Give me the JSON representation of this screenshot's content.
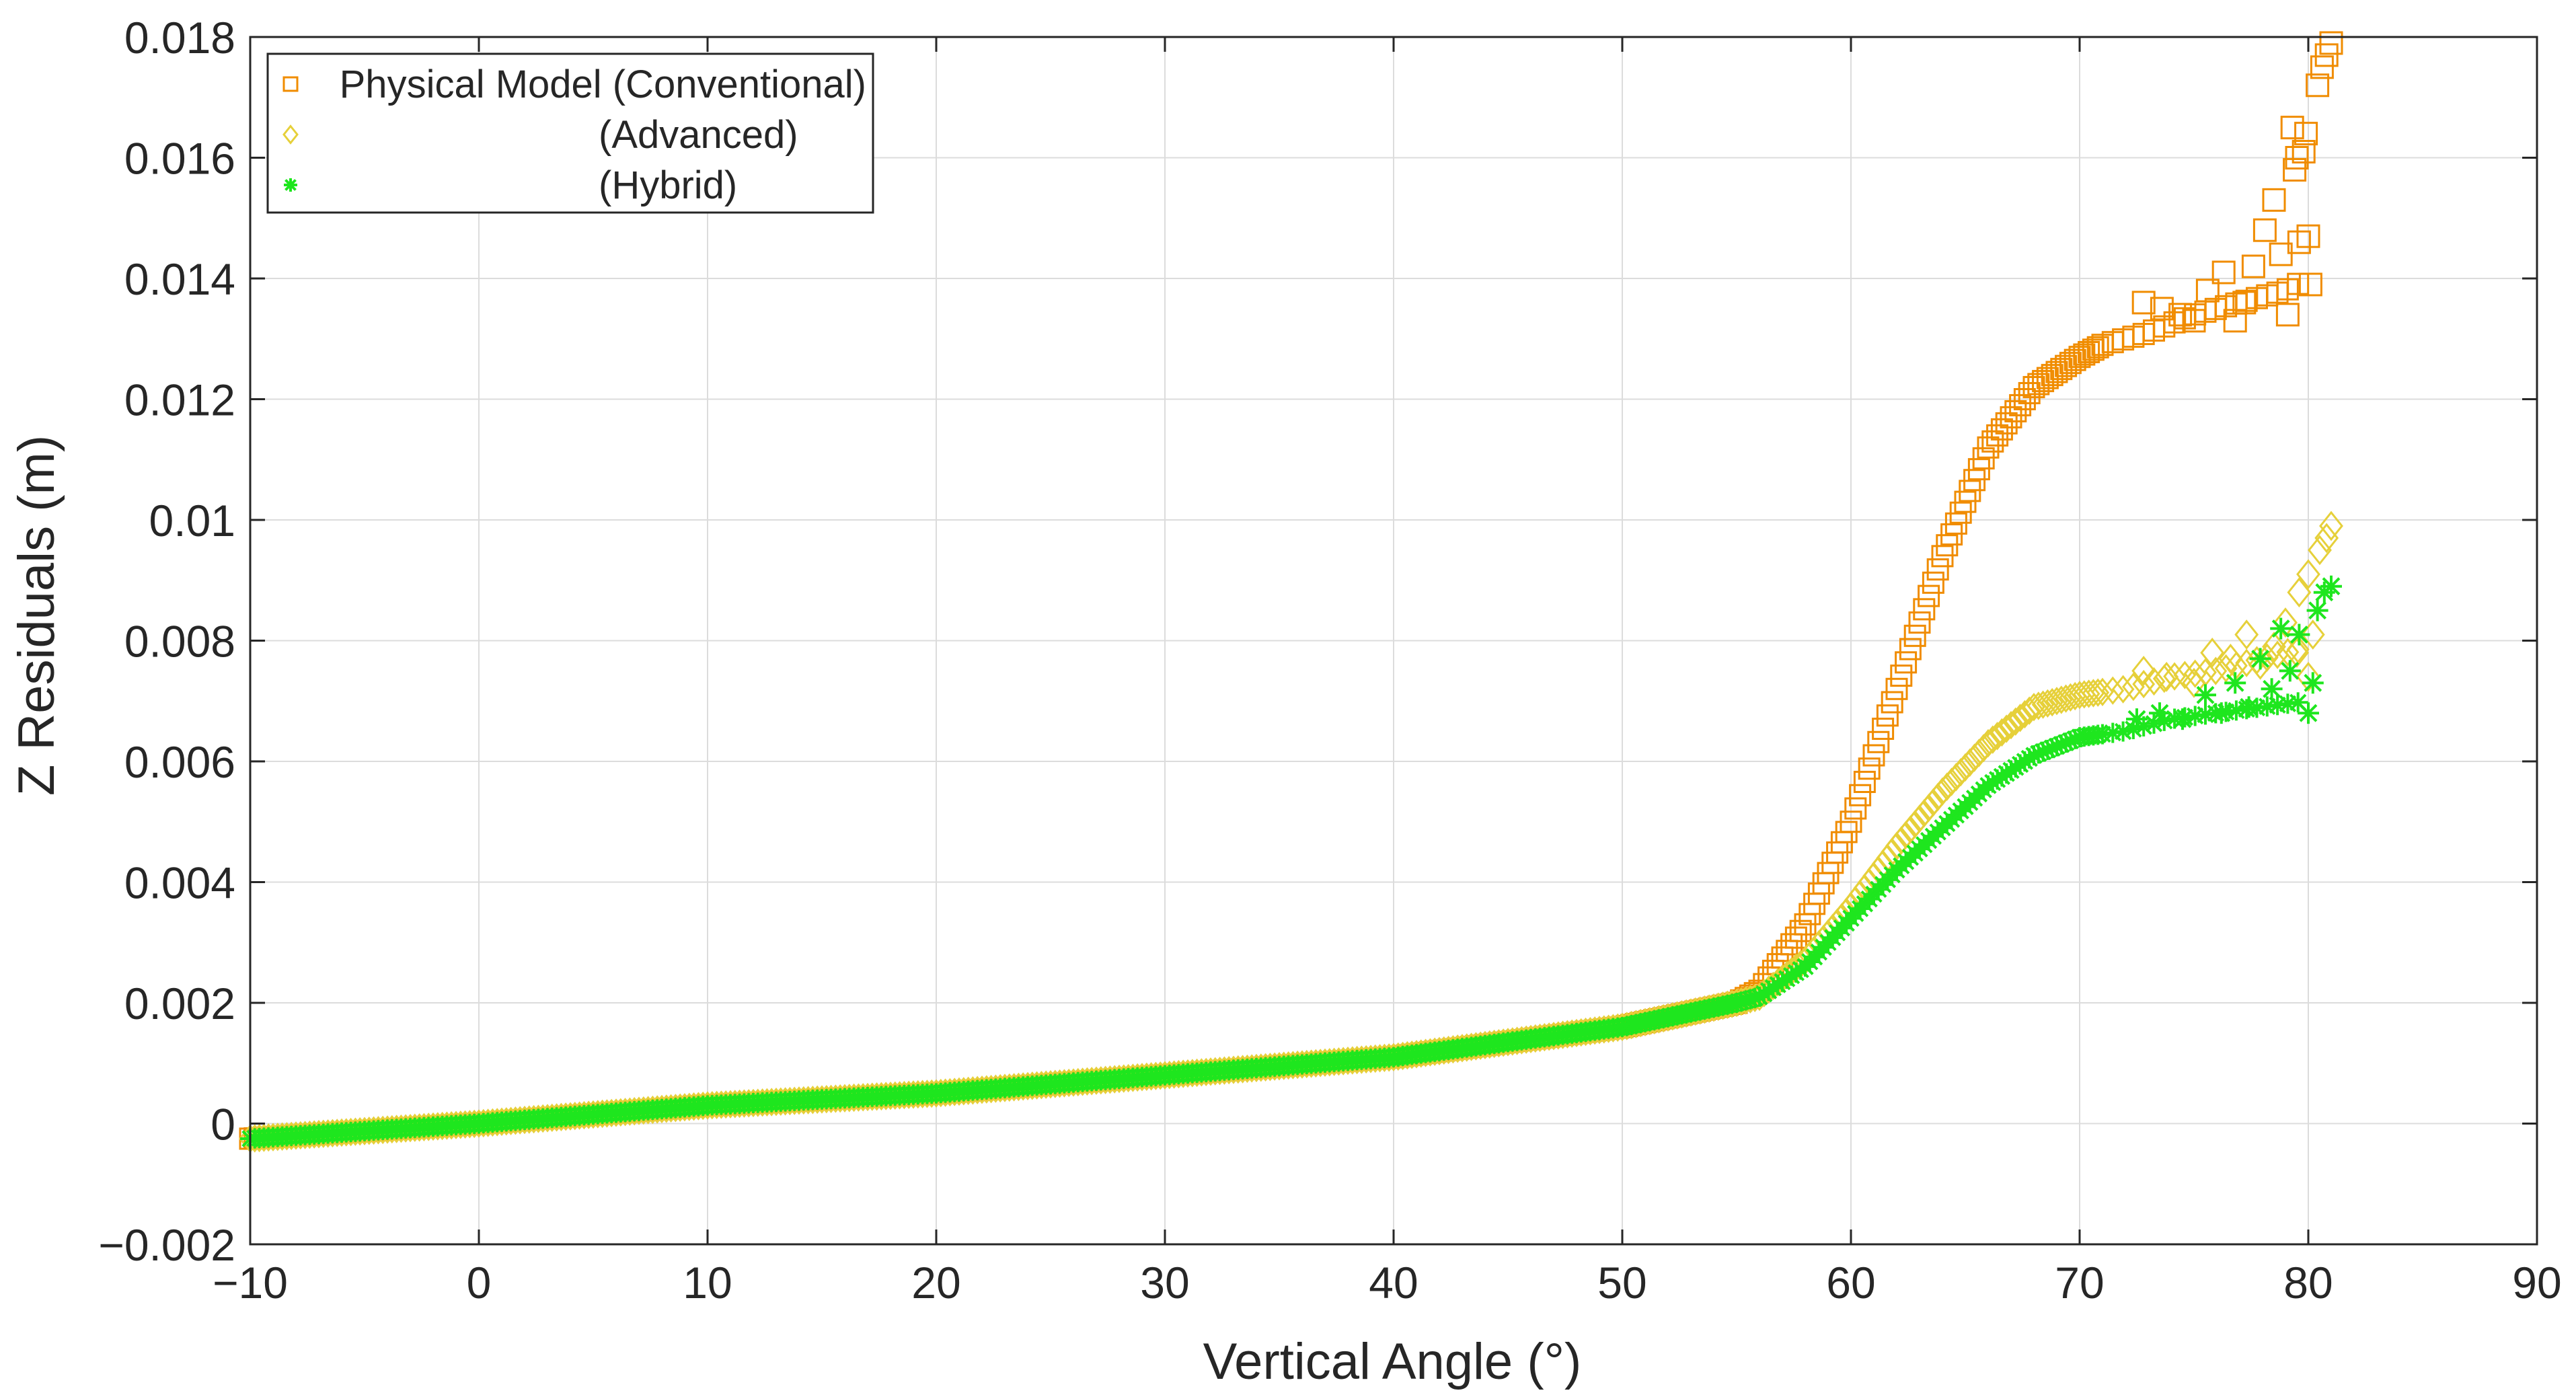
{
  "chart_data": {
    "type": "scatter",
    "title": "",
    "xlabel": "Vertical Angle (°)",
    "ylabel": "Z Residuals (m)",
    "xlim": [
      -10,
      90
    ],
    "ylim": [
      -0.002,
      0.018
    ],
    "grid": true,
    "legend_position": "top-left",
    "x_ticks": [
      -10,
      0,
      10,
      20,
      30,
      40,
      50,
      60,
      70,
      80,
      90
    ],
    "x_tick_labels": [
      "−10",
      "0",
      "10",
      "20",
      "30",
      "40",
      "50",
      "60",
      "70",
      "80",
      "90"
    ],
    "y_ticks": [
      -0.002,
      0,
      0.002,
      0.004,
      0.006,
      0.008,
      0.01,
      0.012,
      0.014,
      0.016,
      0.018
    ],
    "y_tick_labels": [
      "−0.002",
      "0",
      "0.002",
      "0.004",
      "0.006",
      "0.008",
      "0.01",
      "0.012",
      "0.014",
      "0.016",
      "0.018"
    ],
    "series": [
      {
        "name": "Physical Model (Conventional)",
        "marker": "square",
        "color": "#f08c00",
        "curve": [
          [
            -10,
            -0.00025
          ],
          [
            0,
            0.0
          ],
          [
            10,
            0.0003
          ],
          [
            20,
            0.0005
          ],
          [
            30,
            0.0008
          ],
          [
            40,
            0.0011
          ],
          [
            50,
            0.0016
          ],
          [
            55,
            0.002
          ],
          [
            56,
            0.0022
          ],
          [
            58,
            0.0033
          ],
          [
            60,
            0.005
          ],
          [
            62,
            0.0072
          ],
          [
            64,
            0.0094
          ],
          [
            66,
            0.0112
          ],
          [
            68,
            0.0122
          ],
          [
            70,
            0.0127
          ],
          [
            71,
            0.0129
          ],
          [
            73,
            0.0131
          ],
          [
            75,
            0.0134
          ],
          [
            77,
            0.0136
          ],
          [
            79,
            0.0138
          ],
          [
            80,
            0.014
          ]
        ],
        "scatter": [
          [
            72.8,
            0.0136
          ],
          [
            73.6,
            0.0135
          ],
          [
            74.4,
            0.0134
          ],
          [
            75,
            0.0133
          ],
          [
            75.6,
            0.0138
          ],
          [
            76.3,
            0.0141
          ],
          [
            76.8,
            0.0133
          ],
          [
            77.2,
            0.0136
          ],
          [
            77.6,
            0.0142
          ],
          [
            78.1,
            0.0148
          ],
          [
            78.5,
            0.0153
          ],
          [
            78.8,
            0.0144
          ],
          [
            79.1,
            0.0134
          ],
          [
            79.4,
            0.0158
          ],
          [
            79.6,
            0.0146
          ],
          [
            79.8,
            0.0161
          ],
          [
            80.0,
            0.0147
          ],
          [
            80.1,
            0.0139
          ]
        ],
        "tail": [
          [
            79.3,
            0.0165
          ],
          [
            79.5,
            0.016
          ],
          [
            79.9,
            0.0164
          ],
          [
            80.4,
            0.0172
          ],
          [
            80.6,
            0.0175
          ],
          [
            80.8,
            0.0177
          ],
          [
            81.0,
            0.0179
          ]
        ]
      },
      {
        "name": "(Advanced)",
        "marker": "diamond",
        "color": "#e6d03a",
        "curve": [
          [
            -10,
            -0.00025
          ],
          [
            0,
            0.0
          ],
          [
            10,
            0.0003
          ],
          [
            20,
            0.0005
          ],
          [
            30,
            0.0008
          ],
          [
            40,
            0.0011
          ],
          [
            50,
            0.0016
          ],
          [
            55,
            0.002
          ],
          [
            56,
            0.0021
          ],
          [
            58,
            0.0027
          ],
          [
            60,
            0.0036
          ],
          [
            62,
            0.0046
          ],
          [
            64,
            0.0055
          ],
          [
            66,
            0.0063
          ],
          [
            68,
            0.0069
          ],
          [
            70,
            0.0071
          ],
          [
            72,
            0.0072
          ],
          [
            74,
            0.0074
          ],
          [
            76,
            0.0075
          ],
          [
            78,
            0.0077
          ],
          [
            80,
            0.0079
          ]
        ],
        "scatter": [
          [
            72.8,
            0.0075
          ],
          [
            73.8,
            0.0074
          ],
          [
            75,
            0.0073
          ],
          [
            75.8,
            0.0078
          ],
          [
            76.6,
            0.0077
          ],
          [
            77.3,
            0.0081
          ],
          [
            77.9,
            0.0076
          ],
          [
            78.5,
            0.0079
          ],
          [
            79.0,
            0.0083
          ],
          [
            79.5,
            0.0078
          ],
          [
            80.0,
            0.0074
          ],
          [
            80.2,
            0.0081
          ]
        ],
        "tail": [
          [
            79.6,
            0.0088
          ],
          [
            80.0,
            0.0091
          ],
          [
            80.5,
            0.0095
          ],
          [
            80.8,
            0.0097
          ],
          [
            81.0,
            0.0099
          ]
        ]
      },
      {
        "name": "(Hybrid)",
        "marker": "asterisk",
        "color": "#1ee61e",
        "curve": [
          [
            -10,
            -0.00025
          ],
          [
            0,
            0.0
          ],
          [
            10,
            0.0003
          ],
          [
            20,
            0.0005
          ],
          [
            30,
            0.0008
          ],
          [
            40,
            0.0011
          ],
          [
            50,
            0.0016
          ],
          [
            55,
            0.002
          ],
          [
            56,
            0.0021
          ],
          [
            58,
            0.0026
          ],
          [
            60,
            0.0034
          ],
          [
            62,
            0.0042
          ],
          [
            64,
            0.0049
          ],
          [
            66,
            0.0056
          ],
          [
            68,
            0.0061
          ],
          [
            70,
            0.0064
          ],
          [
            72,
            0.0065
          ],
          [
            74,
            0.0067
          ],
          [
            76,
            0.0068
          ],
          [
            78,
            0.0069
          ],
          [
            80,
            0.007
          ]
        ],
        "scatter": [
          [
            72.5,
            0.0067
          ],
          [
            73.5,
            0.0068
          ],
          [
            74.5,
            0.0067
          ],
          [
            75.5,
            0.0071
          ],
          [
            76.2,
            0.0068
          ],
          [
            76.8,
            0.0073
          ],
          [
            77.4,
            0.0069
          ],
          [
            77.9,
            0.0077
          ],
          [
            78.4,
            0.0072
          ],
          [
            78.8,
            0.0082
          ],
          [
            79.2,
            0.0075
          ],
          [
            79.6,
            0.0081
          ],
          [
            80.0,
            0.0068
          ],
          [
            80.2,
            0.0073
          ]
        ],
        "tail": [
          [
            80.4,
            0.0085
          ],
          [
            80.7,
            0.0088
          ],
          [
            81.0,
            0.0089
          ]
        ]
      }
    ]
  }
}
